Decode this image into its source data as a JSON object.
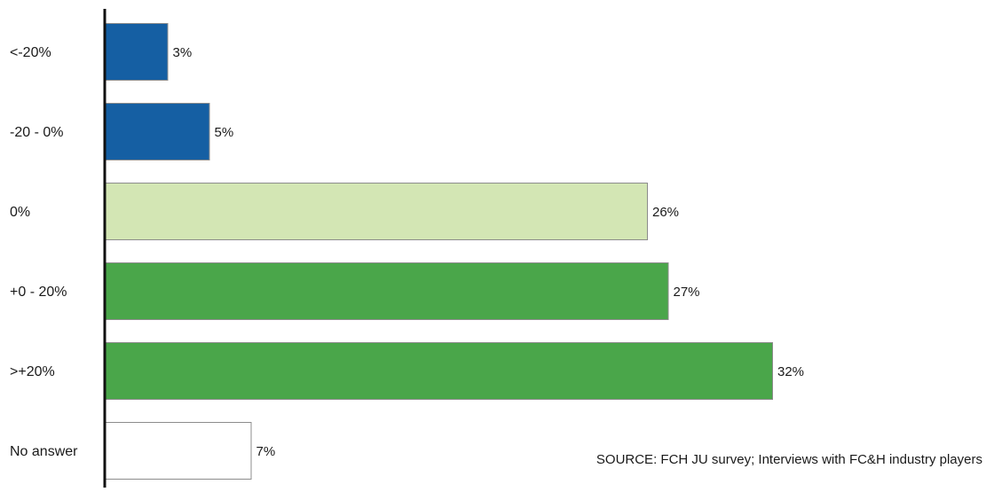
{
  "chart_data": {
    "type": "bar",
    "orientation": "horizontal",
    "categories": [
      "<-20%",
      "-20 - 0%",
      "0%",
      "+0 - 20%",
      ">+20%",
      "No answer"
    ],
    "values": [
      3,
      5,
      26,
      27,
      32,
      7
    ],
    "value_labels": [
      "3%",
      "5%",
      "26%",
      "27%",
      "32%",
      "7%"
    ],
    "bar_colors": [
      "#155fa3",
      "#155fa3",
      "#d3e6b4",
      "#4aa64a",
      "#4aa64a",
      "#ffffff"
    ],
    "bar_border_color": "#8c8c8c",
    "axis_color": "#111111",
    "grid": false,
    "legend": "none"
  },
  "source": "SOURCE: FCH JU survey; Interviews with FC&H industry players"
}
